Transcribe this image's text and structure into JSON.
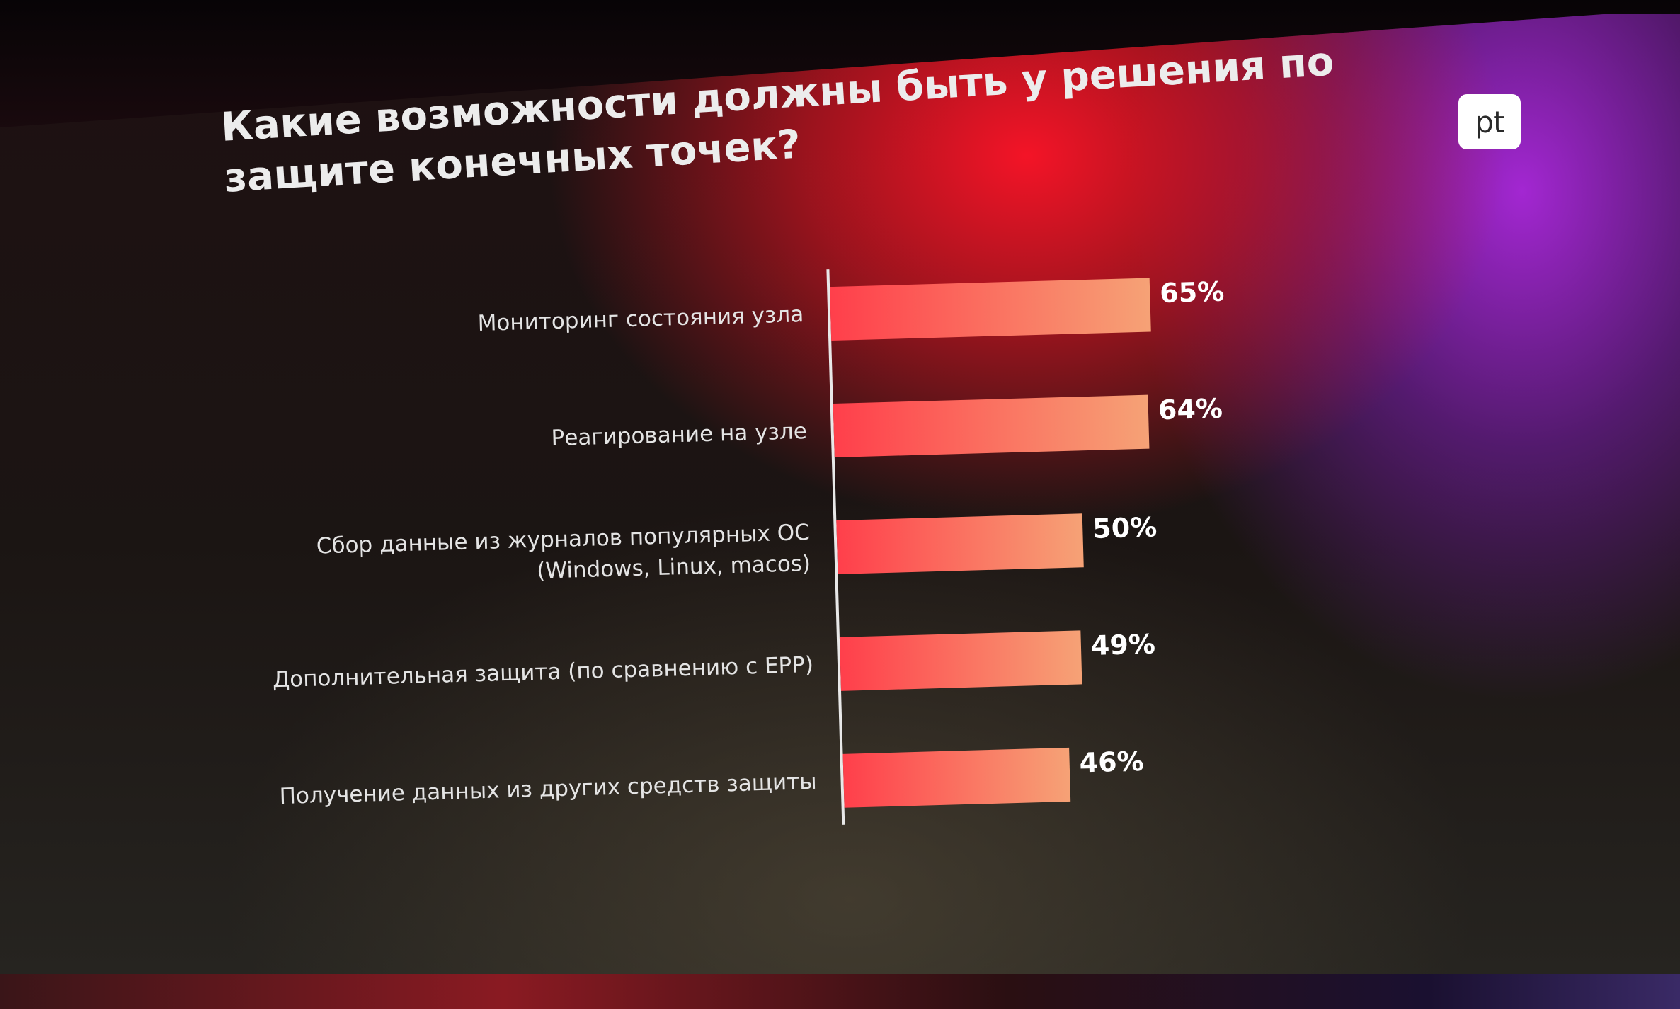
{
  "slide": {
    "title": "Какие возможности должны быть у решения по защите конечных точек?",
    "logo_text": "pt"
  },
  "colors": {
    "bar_start": "#ff3f4b",
    "bar_end": "#f6a276",
    "axis_line": "#e8e8e8"
  },
  "chart_data": {
    "type": "bar",
    "orientation": "horizontal",
    "title": "Какие возможности должны быть у решения по защите конечных точек?",
    "categories": [
      [
        "Мониторинг состояния узла"
      ],
      [
        "Реагирование на узле"
      ],
      [
        "Сбор данные из журналов популярных ОС",
        "(Windows, Linux, macos)"
      ],
      [
        "Дополнительная защита (по сравнению с EPP)"
      ],
      [
        "Получение данных из других средств защиты"
      ]
    ],
    "values": [
      65,
      64,
      50,
      49,
      46
    ],
    "value_labels": [
      "65%",
      "64%",
      "50%",
      "49%",
      "46%"
    ],
    "xlim": [
      0,
      100
    ],
    "grid": false,
    "legend": "none"
  }
}
